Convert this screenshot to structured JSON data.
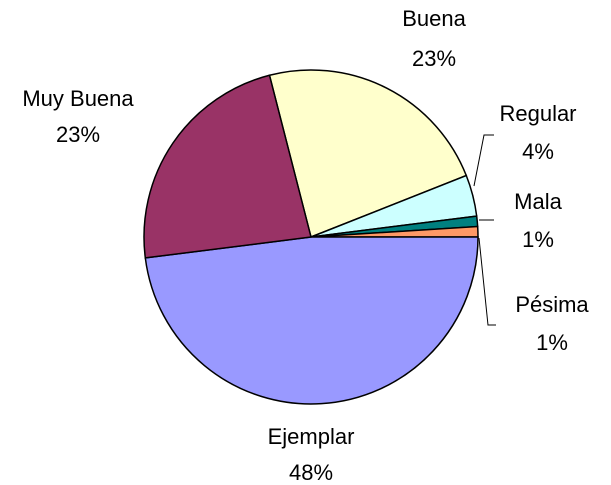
{
  "chart_data": {
    "type": "pie",
    "categories": [
      "Buena",
      "Regular",
      "Mala",
      "Pésima",
      "Ejemplar",
      "Muy Buena"
    ],
    "values": [
      23,
      4,
      1,
      1,
      48,
      23
    ],
    "value_labels": [
      "23%",
      "4%",
      "1%",
      "1%",
      "48%",
      "23%"
    ],
    "colors": [
      "#ffffcc",
      "#ccffff",
      "#008080",
      "#ff9966",
      "#9999ff",
      "#993366"
    ]
  }
}
